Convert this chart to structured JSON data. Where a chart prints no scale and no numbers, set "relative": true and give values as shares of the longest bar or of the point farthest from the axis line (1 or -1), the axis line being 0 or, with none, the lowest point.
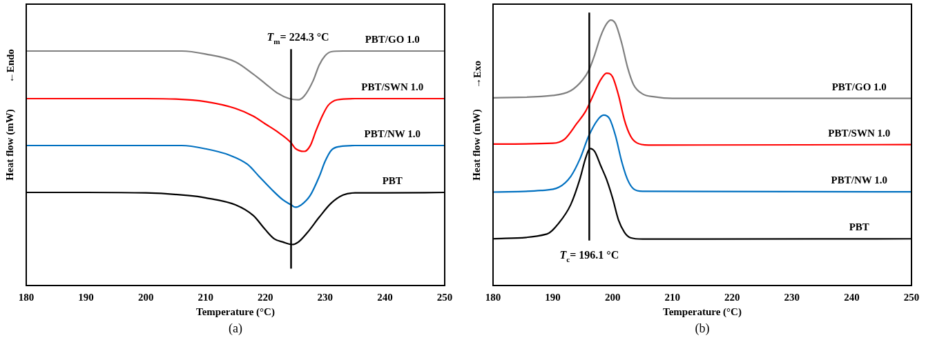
{
  "chart_data": [
    {
      "type": "line",
      "relative": true,
      "xlabel": "Temperature (°C)",
      "ylabel": "Heat flow (mW)",
      "xlim": [
        180,
        250
      ],
      "xticks": [
        180,
        190,
        200,
        210,
        220,
        230,
        240,
        250
      ],
      "tick_labels": "x",
      "grid": false,
      "legend": false,
      "marker": "none",
      "line_style": "solid",
      "annotations": [
        "←Endo",
        "(a)"
      ],
      "ref_lines": [
        {
          "axis": "x",
          "value": 224.3,
          "label": "T$_{m}$= 224.3 °C",
          "color": "#000000"
        }
      ],
      "series": [
        {
          "name": "PBT/GO 1.0",
          "color": "#7f7f7f",
          "x": [
            180,
            190,
            200,
            206,
            210,
            215,
            218,
            220,
            222,
            224,
            225.5,
            226.5,
            228,
            229,
            230,
            231,
            233,
            240,
            250
          ],
          "values": [
            1.0,
            1.0,
            1.0,
            1.0,
            0.987,
            0.954,
            0.901,
            0.861,
            0.821,
            0.797,
            0.792,
            0.808,
            0.874,
            0.94,
            0.98,
            0.997,
            1.0,
            1.0,
            1.0
          ]
        },
        {
          "name": "PBT/SWN 1.0",
          "color": "#ff0000",
          "x": [
            180,
            190,
            200,
            205,
            210,
            215,
            218,
            220,
            222,
            224.3,
            225,
            226.5,
            227.5,
            228.5,
            229.5,
            230.5,
            232,
            235,
            250
          ],
          "values": [
            0.797,
            0.797,
            0.797,
            0.795,
            0.784,
            0.755,
            0.722,
            0.689,
            0.656,
            0.609,
            0.585,
            0.572,
            0.596,
            0.662,
            0.722,
            0.768,
            0.792,
            0.797,
            0.797
          ]
        },
        {
          "name": "PBT/NW 1.0",
          "color": "#0070c0",
          "x": [
            180,
            190,
            200,
            206,
            210,
            214,
            217,
            219,
            221,
            223,
            224.3,
            225,
            226,
            227.5,
            229,
            230,
            231,
            232.5,
            235,
            250
          ],
          "values": [
            0.597,
            0.597,
            0.597,
            0.597,
            0.583,
            0.556,
            0.517,
            0.464,
            0.411,
            0.364,
            0.344,
            0.334,
            0.344,
            0.384,
            0.464,
            0.53,
            0.576,
            0.593,
            0.597,
            0.597
          ]
        },
        {
          "name": "PBT",
          "color": "#000000",
          "x": [
            180,
            190,
            200,
            207,
            210,
            215,
            218,
            220,
            221.5,
            223,
            224.5,
            225.5,
            227,
            229,
            231,
            233,
            235,
            240,
            250
          ],
          "values": [
            0.397,
            0.397,
            0.395,
            0.384,
            0.374,
            0.344,
            0.298,
            0.238,
            0.199,
            0.185,
            0.175,
            0.185,
            0.225,
            0.291,
            0.351,
            0.386,
            0.395,
            0.395,
            0.397
          ]
        }
      ]
    },
    {
      "type": "line",
      "relative": true,
      "xlabel": "Temperature (°C)",
      "ylabel": "Heat flow (mW)",
      "xlim": [
        180,
        250
      ],
      "xticks": [
        180,
        190,
        200,
        210,
        220,
        230,
        240,
        250
      ],
      "tick_labels": "x",
      "grid": false,
      "legend": false,
      "marker": "none",
      "line_style": "solid",
      "annotations": [
        "→Exo",
        "(b)"
      ],
      "ref_lines": [
        {
          "axis": "x",
          "value": 196.1,
          "label": "T$_{c}$= 196.1 °C",
          "color": "#000000"
        }
      ],
      "series": [
        {
          "name": "PBT/GO 1.0",
          "color": "#7f7f7f",
          "x": [
            180,
            190,
            193,
            195,
            196,
            197,
            198,
            199,
            199.7,
            200.5,
            201.5,
            202.5,
            203.5,
            205,
            207,
            210,
            250
          ],
          "values": [
            0.707,
            0.716,
            0.734,
            0.775,
            0.81,
            0.869,
            0.939,
            0.986,
            1.0,
            0.986,
            0.915,
            0.822,
            0.757,
            0.722,
            0.711,
            0.705,
            0.705
          ]
        },
        {
          "name": "PBT/SWN 1.0",
          "color": "#ff0000",
          "x": [
            180,
            190,
            192,
            194,
            195.5,
            196.5,
            198,
            199,
            200,
            201,
            202,
            203,
            204,
            206,
            250
          ],
          "values": [
            0.533,
            0.536,
            0.552,
            0.61,
            0.657,
            0.704,
            0.775,
            0.8,
            0.786,
            0.716,
            0.622,
            0.563,
            0.538,
            0.529,
            0.531
          ]
        },
        {
          "name": "PBT/NW 1.0",
          "color": "#0070c0",
          "x": [
            180,
            188,
            191,
            193,
            194.5,
            196,
            197.5,
            198.5,
            199.5,
            200.5,
            201.5,
            202.5,
            203.5,
            205,
            250
          ],
          "values": [
            0.352,
            0.358,
            0.37,
            0.411,
            0.475,
            0.563,
            0.624,
            0.642,
            0.628,
            0.563,
            0.469,
            0.399,
            0.364,
            0.355,
            0.353
          ]
        },
        {
          "name": "PBT",
          "color": "#000000",
          "x": [
            180,
            189,
            191,
            193,
            194.5,
            195.5,
            196.2,
            197,
            198,
            199,
            200,
            201,
            202,
            203,
            205,
            250
          ],
          "values": [
            0.176,
            0.194,
            0.235,
            0.305,
            0.399,
            0.481,
            0.516,
            0.505,
            0.452,
            0.399,
            0.329,
            0.246,
            0.2,
            0.18,
            0.175,
            0.176
          ]
        }
      ]
    }
  ]
}
